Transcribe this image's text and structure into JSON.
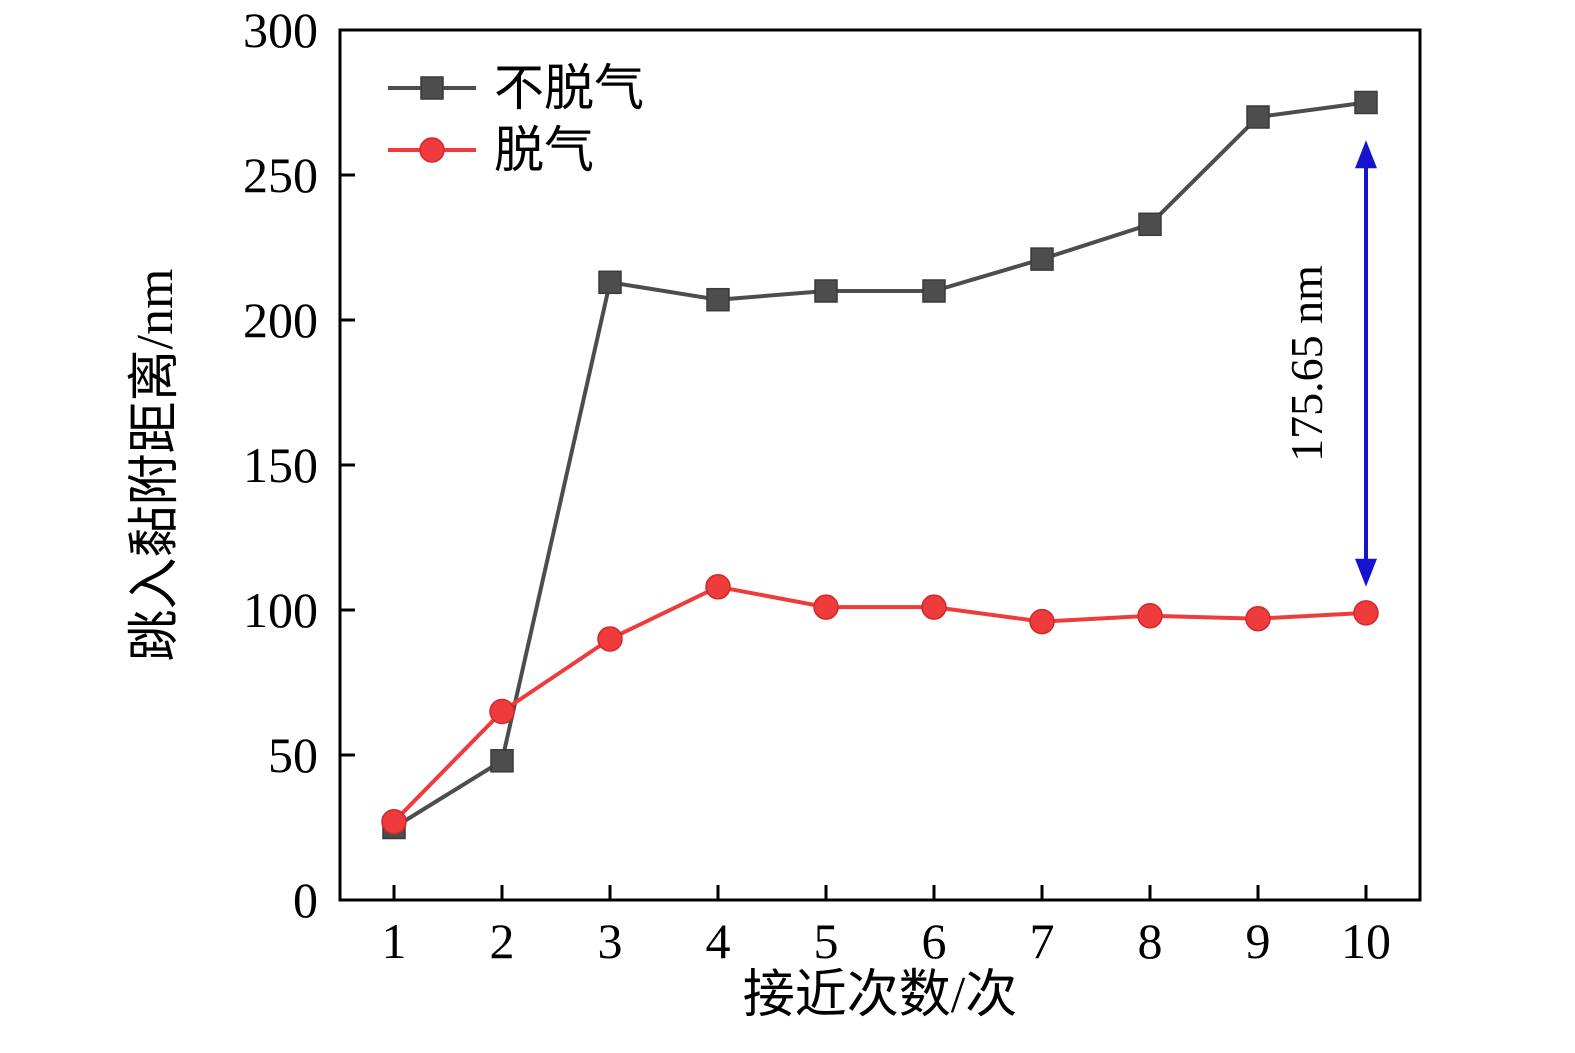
{
  "chart_data": {
    "type": "line",
    "title": "",
    "xlabel": "接近次数/次",
    "ylabel": "跳入黏附距离/nm",
    "x": [
      1,
      2,
      3,
      4,
      5,
      6,
      7,
      8,
      9,
      10
    ],
    "xlim": [
      0.5,
      10.5
    ],
    "ylim": [
      0,
      300
    ],
    "xticks": [
      1,
      2,
      3,
      4,
      5,
      6,
      7,
      8,
      9,
      10
    ],
    "yticks": [
      0,
      50,
      100,
      150,
      200,
      250,
      300
    ],
    "grid": false,
    "legend_position": "top-left",
    "series": [
      {
        "name": "不脱气",
        "color": "#4d4d4d",
        "marker": "square",
        "values": [
          25,
          48,
          213,
          207,
          210,
          210,
          221,
          233,
          270,
          275
        ]
      },
      {
        "name": "脱气",
        "color": "#ef3b3c",
        "marker": "circle",
        "values": [
          27,
          65,
          90,
          108,
          101,
          101,
          96,
          98,
          97,
          99
        ]
      }
    ],
    "annotation": {
      "label": "175.65 nm",
      "x": 10,
      "y_from": 262,
      "y_to": 108,
      "color": "#1515cf"
    }
  }
}
